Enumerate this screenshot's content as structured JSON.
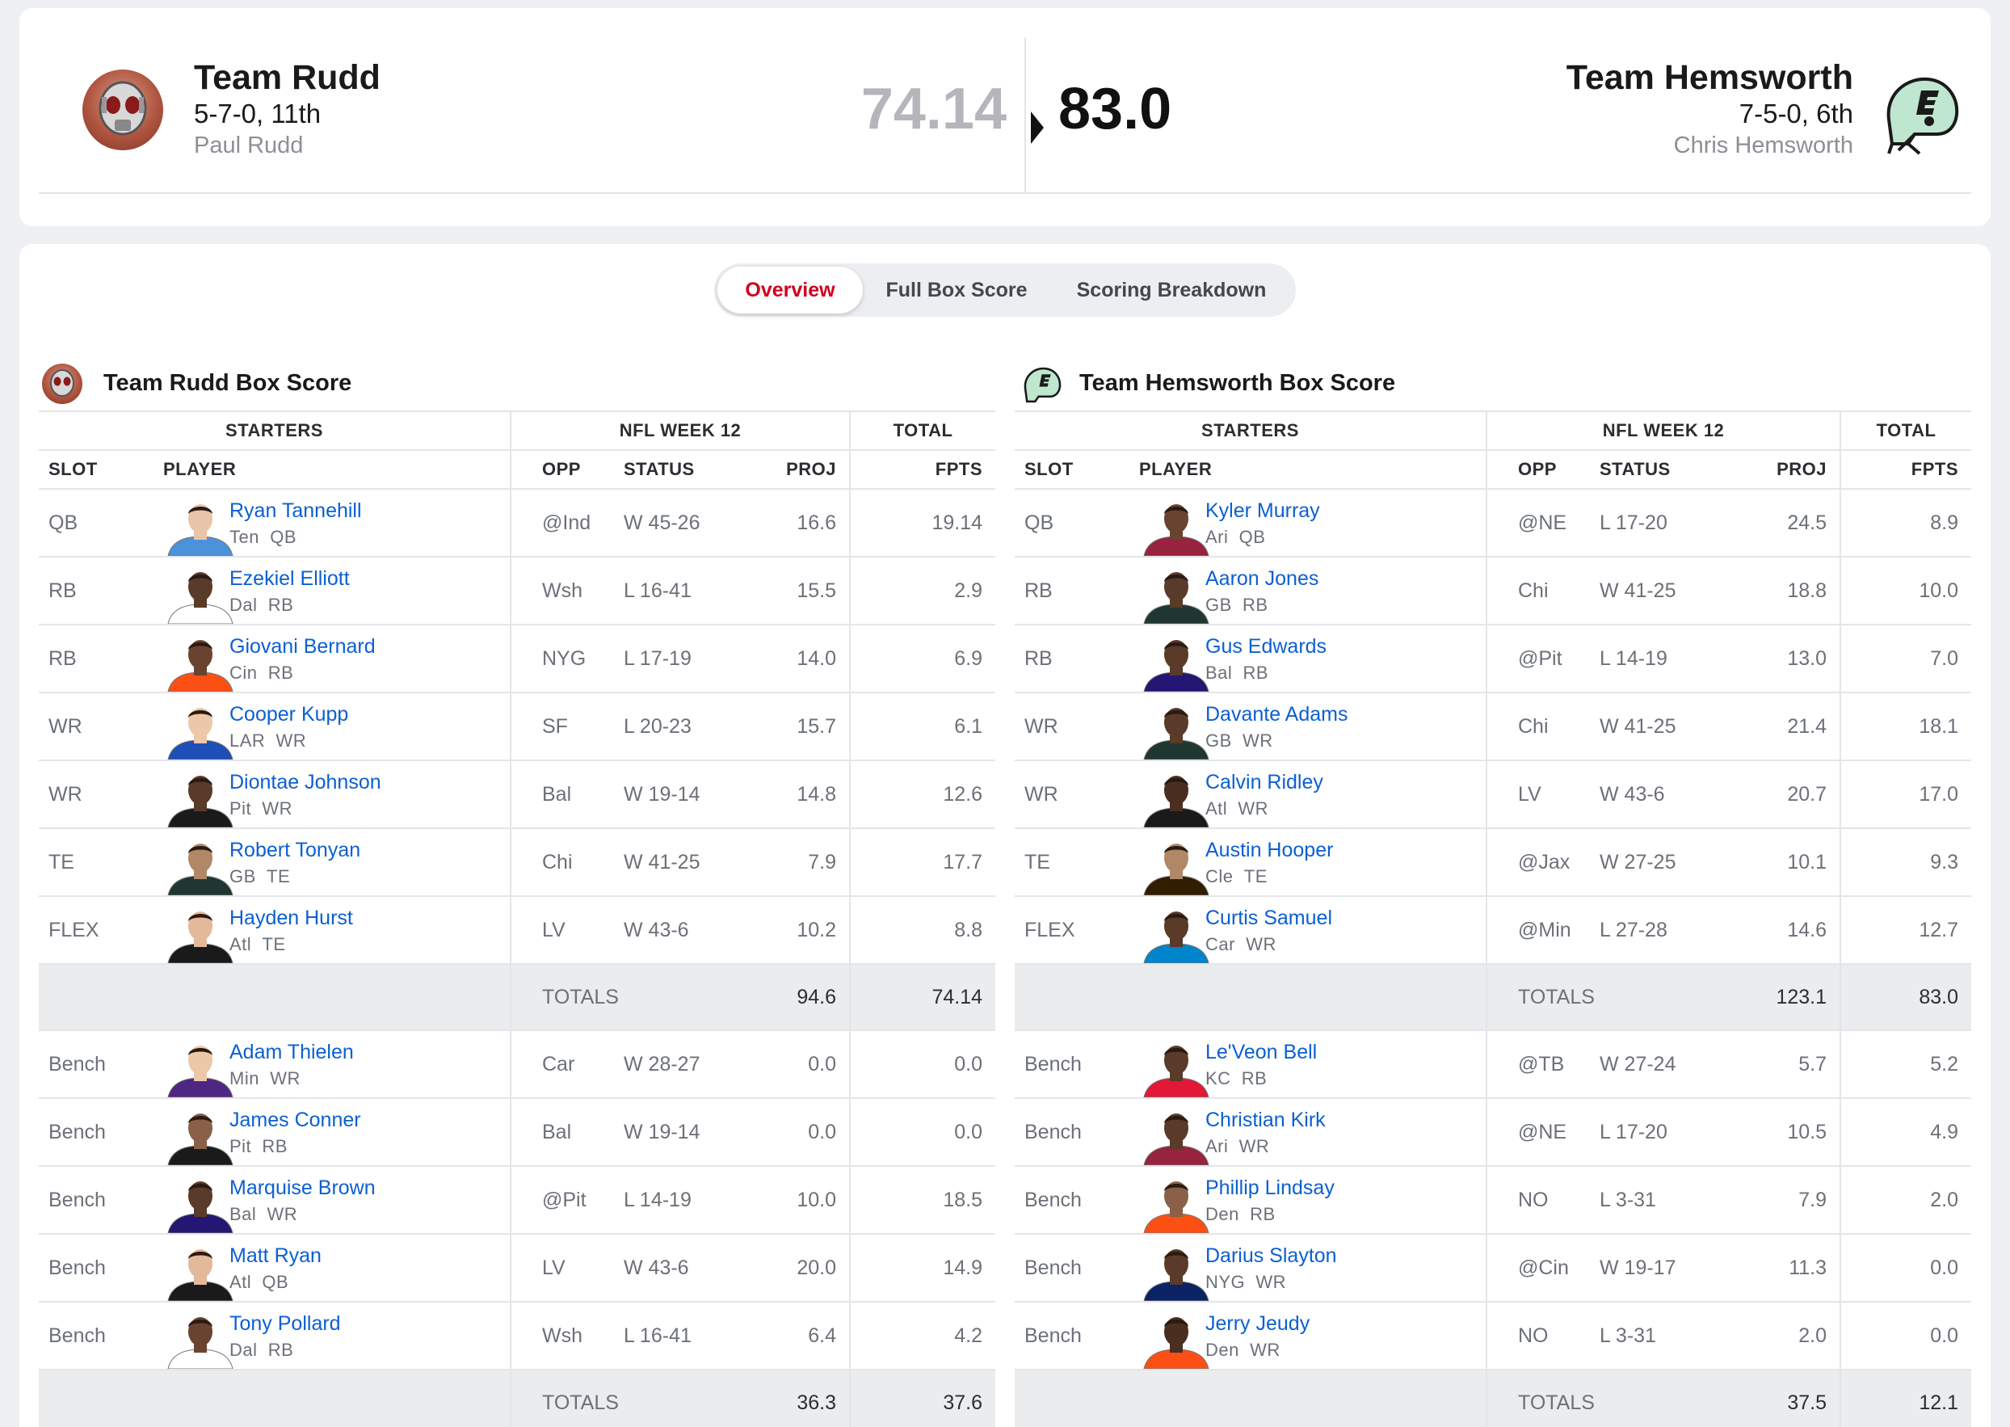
{
  "matchup": {
    "home": {
      "name": "Team Rudd",
      "record": "5-7-0, 11th",
      "owner": "Paul Rudd",
      "score": "74.14"
    },
    "away": {
      "name": "Team Hemsworth",
      "record": "7-5-0, 6th",
      "owner": "Chris Hemsworth",
      "score": "83.0"
    }
  },
  "tabs": [
    {
      "label": "Overview",
      "active": true
    },
    {
      "label": "Full Box Score",
      "active": false
    },
    {
      "label": "Scoring Breakdown",
      "active": false
    }
  ],
  "columns": {
    "starters": "STARTERS",
    "week": "NFL WEEK 12",
    "total": "TOTAL",
    "slot": "SLOT",
    "player": "PLAYER",
    "opp": "OPP",
    "status": "STATUS",
    "proj": "PROJ",
    "fpts": "FPTS",
    "totals_label": "TOTALS"
  },
  "colors": {
    "link": "#0b5fd3",
    "active_tab": "#d0021b",
    "total_row_bg": "#ebecee"
  },
  "boxes": [
    {
      "title": "Team Rudd Box Score",
      "starters": [
        {
          "slot": "QB",
          "name": "Ryan Tannehill",
          "team": "Ten",
          "pos": "QB",
          "opp": "@Ind",
          "status": "W 45-26",
          "proj": "16.6",
          "fpts": "19.14",
          "jersey": "#4b92db",
          "skin": "#e8c4a8"
        },
        {
          "slot": "RB",
          "name": "Ezekiel Elliott",
          "team": "Dal",
          "pos": "RB",
          "opp": "Wsh",
          "status": "L 16-41",
          "proj": "15.5",
          "fpts": "2.9",
          "jersey": "#ffffff",
          "skin": "#5a3a28"
        },
        {
          "slot": "RB",
          "name": "Giovani Bernard",
          "team": "Cin",
          "pos": "RB",
          "opp": "NYG",
          "status": "L 17-19",
          "proj": "14.0",
          "fpts": "6.9",
          "jersey": "#fb4f14",
          "skin": "#6a4330"
        },
        {
          "slot": "WR",
          "name": "Cooper Kupp",
          "team": "LAR",
          "pos": "WR",
          "opp": "SF",
          "status": "L 20-23",
          "proj": "15.7",
          "fpts": "6.1",
          "jersey": "#1e4fb8",
          "skin": "#ecc8a8"
        },
        {
          "slot": "WR",
          "name": "Diontae Johnson",
          "team": "Pit",
          "pos": "WR",
          "opp": "Bal",
          "status": "W 19-14",
          "proj": "14.8",
          "fpts": "12.6",
          "jersey": "#1a1a1a",
          "skin": "#5a3a28"
        },
        {
          "slot": "TE",
          "name": "Robert Tonyan",
          "team": "GB",
          "pos": "TE",
          "opp": "Chi",
          "status": "W 41-25",
          "proj": "7.9",
          "fpts": "17.7",
          "jersey": "#203731",
          "skin": "#b08868"
        },
        {
          "slot": "FLEX",
          "name": "Hayden Hurst",
          "team": "Atl",
          "pos": "TE",
          "opp": "LV",
          "status": "W 43-6",
          "proj": "10.2",
          "fpts": "8.8",
          "jersey": "#1a1a1a",
          "skin": "#e4b89a"
        }
      ],
      "starters_totals": {
        "proj": "94.6",
        "fpts": "74.14"
      },
      "bench": [
        {
          "slot": "Bench",
          "name": "Adam Thielen",
          "team": "Min",
          "pos": "WR",
          "opp": "Car",
          "status": "W 28-27",
          "proj": "0.0",
          "fpts": "0.0",
          "jersey": "#4f2683",
          "skin": "#ecc8a8"
        },
        {
          "slot": "Bench",
          "name": "James Conner",
          "team": "Pit",
          "pos": "RB",
          "opp": "Bal",
          "status": "W 19-14",
          "proj": "0.0",
          "fpts": "0.0",
          "jersey": "#1a1a1a",
          "skin": "#8a6048"
        },
        {
          "slot": "Bench",
          "name": "Marquise Brown",
          "team": "Bal",
          "pos": "WR",
          "opp": "@Pit",
          "status": "L 14-19",
          "proj": "10.0",
          "fpts": "18.5",
          "jersey": "#241773",
          "skin": "#5a3a28"
        },
        {
          "slot": "Bench",
          "name": "Matt Ryan",
          "team": "Atl",
          "pos": "QB",
          "opp": "LV",
          "status": "W 43-6",
          "proj": "20.0",
          "fpts": "14.9",
          "jersey": "#1a1a1a",
          "skin": "#e4b89a"
        },
        {
          "slot": "Bench",
          "name": "Tony Pollard",
          "team": "Dal",
          "pos": "RB",
          "opp": "Wsh",
          "status": "L 16-41",
          "proj": "6.4",
          "fpts": "4.2",
          "jersey": "#ffffff",
          "skin": "#6a4330"
        }
      ],
      "bench_totals": {
        "proj": "36.3",
        "fpts": "37.6"
      }
    },
    {
      "title": "Team Hemsworth Box Score",
      "starters": [
        {
          "slot": "QB",
          "name": "Kyler Murray",
          "team": "Ari",
          "pos": "QB",
          "opp": "@NE",
          "status": "L 17-20",
          "proj": "24.5",
          "fpts": "8.9",
          "jersey": "#97233f",
          "skin": "#6a4330"
        },
        {
          "slot": "RB",
          "name": "Aaron Jones",
          "team": "GB",
          "pos": "RB",
          "opp": "Chi",
          "status": "W 41-25",
          "proj": "18.8",
          "fpts": "10.0",
          "jersey": "#203731",
          "skin": "#5a3a28"
        },
        {
          "slot": "RB",
          "name": "Gus Edwards",
          "team": "Bal",
          "pos": "RB",
          "opp": "@Pit",
          "status": "L 14-19",
          "proj": "13.0",
          "fpts": "7.0",
          "jersey": "#241773",
          "skin": "#5a3a28"
        },
        {
          "slot": "WR",
          "name": "Davante Adams",
          "team": "GB",
          "pos": "WR",
          "opp": "Chi",
          "status": "W 41-25",
          "proj": "21.4",
          "fpts": "18.1",
          "jersey": "#203731",
          "skin": "#5a3a28"
        },
        {
          "slot": "WR",
          "name": "Calvin Ridley",
          "team": "Atl",
          "pos": "WR",
          "opp": "LV",
          "status": "W 43-6",
          "proj": "20.7",
          "fpts": "17.0",
          "jersey": "#1a1a1a",
          "skin": "#4a2e20"
        },
        {
          "slot": "TE",
          "name": "Austin Hooper",
          "team": "Cle",
          "pos": "TE",
          "opp": "@Jax",
          "status": "W 27-25",
          "proj": "10.1",
          "fpts": "9.3",
          "jersey": "#311d00",
          "skin": "#b08868"
        },
        {
          "slot": "FLEX",
          "name": "Curtis Samuel",
          "team": "Car",
          "pos": "WR",
          "opp": "@Min",
          "status": "L 27-28",
          "proj": "14.6",
          "fpts": "12.7",
          "jersey": "#0085ca",
          "skin": "#5a3a28"
        }
      ],
      "starters_totals": {
        "proj": "123.1",
        "fpts": "83.0"
      },
      "bench": [
        {
          "slot": "Bench",
          "name": "Le'Veon Bell",
          "team": "KC",
          "pos": "RB",
          "opp": "@TB",
          "status": "W 27-24",
          "proj": "5.7",
          "fpts": "5.2",
          "jersey": "#e31837",
          "skin": "#5a3a28"
        },
        {
          "slot": "Bench",
          "name": "Christian Kirk",
          "team": "Ari",
          "pos": "WR",
          "opp": "@NE",
          "status": "L 17-20",
          "proj": "10.5",
          "fpts": "4.9",
          "jersey": "#97233f",
          "skin": "#5a3a28"
        },
        {
          "slot": "Bench",
          "name": "Phillip Lindsay",
          "team": "Den",
          "pos": "RB",
          "opp": "NO",
          "status": "L 3-31",
          "proj": "7.9",
          "fpts": "2.0",
          "jersey": "#fb4f14",
          "skin": "#8a6048"
        },
        {
          "slot": "Bench",
          "name": "Darius Slayton",
          "team": "NYG",
          "pos": "WR",
          "opp": "@Cin",
          "status": "W 19-17",
          "proj": "11.3",
          "fpts": "0.0",
          "jersey": "#0b2265",
          "skin": "#5a3a28"
        },
        {
          "slot": "Bench",
          "name": "Jerry Jeudy",
          "team": "Den",
          "pos": "WR",
          "opp": "NO",
          "status": "L 3-31",
          "proj": "2.0",
          "fpts": "0.0",
          "jersey": "#fb4f14",
          "skin": "#4a2e20"
        }
      ],
      "bench_totals": {
        "proj": "37.5",
        "fpts": "12.1"
      }
    }
  ]
}
